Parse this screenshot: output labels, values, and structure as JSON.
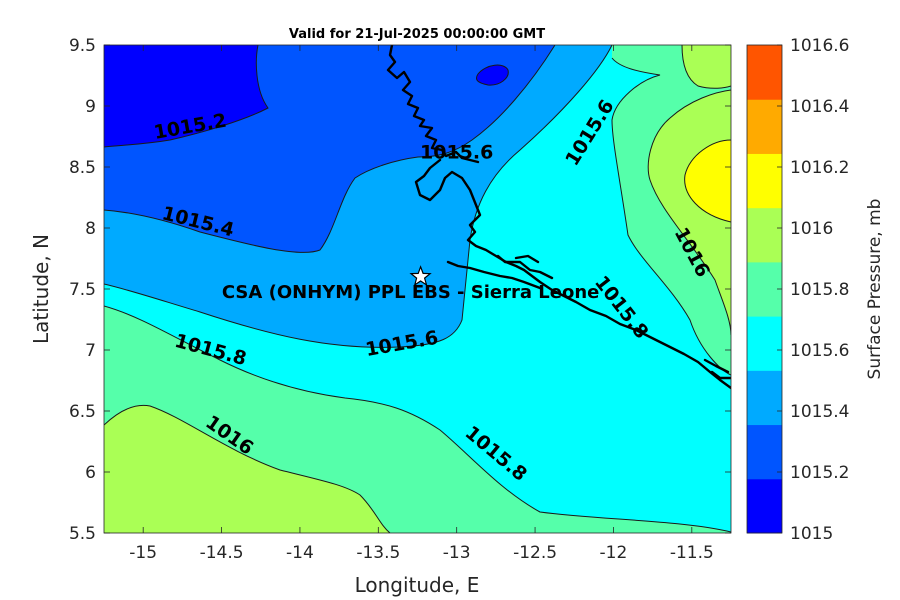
{
  "title": "Valid for 21-Jul-2025 00:00:00 GMT",
  "site_label": "CSA (ONHYM) PPL EBS  - Sierra Leone",
  "site_marker": {
    "lon": -13.23,
    "lat": 7.6,
    "icon": "star-icon"
  },
  "chart_data": {
    "type": "contour",
    "xlabel": "Longitude, E",
    "ylabel": "Latitude, N",
    "xlim": [
      -15.25,
      -11.25
    ],
    "ylim": [
      5.5,
      9.5
    ],
    "x_ticks": [
      -15,
      -14.5,
      -14,
      -13.5,
      -13,
      -12.5,
      -12,
      -11.5
    ],
    "y_ticks": [
      5.5,
      6,
      6.5,
      7,
      7.5,
      8,
      8.5,
      9,
      9.5
    ],
    "x_tick_labels": [
      "-15",
      "-14.5",
      "-14",
      "-13.5",
      "-13",
      "-12.5",
      "-12",
      "-11.5"
    ],
    "y_tick_labels": [
      "5.5",
      "6",
      "6.5",
      "7",
      "7.5",
      "8",
      "8.5",
      "9",
      "9.5"
    ],
    "contour_levels": [
      1015,
      1015.2,
      1015.4,
      1015.6,
      1015.8,
      1016,
      1016.2,
      1016.4,
      1016.6
    ],
    "contour_labels": [
      {
        "text": "1015.2",
        "lon": -14.7,
        "lat": 8.83,
        "angle": -10
      },
      {
        "text": "1015.4",
        "lon": -14.65,
        "lat": 8.05,
        "angle": 14
      },
      {
        "text": "1015.6",
        "lon": -13.0,
        "lat": 8.62,
        "angle": 0
      },
      {
        "text": "1015.6",
        "lon": -12.15,
        "lat": 8.78,
        "angle": -58
      },
      {
        "text": "1015.6",
        "lon": -13.35,
        "lat": 7.05,
        "angle": -10
      },
      {
        "text": "1015.8",
        "lon": -14.57,
        "lat": 7.0,
        "angle": 15
      },
      {
        "text": "1015.8",
        "lon": -11.95,
        "lat": 7.35,
        "angle": 52
      },
      {
        "text": "1015.8",
        "lon": -12.75,
        "lat": 6.15,
        "angle": 40
      },
      {
        "text": "1016",
        "lon": -14.45,
        "lat": 6.3,
        "angle": 35
      },
      {
        "text": "1016",
        "lon": -11.5,
        "lat": 7.8,
        "angle": 62
      }
    ],
    "colorbar": {
      "label": "Surface Pressure, mb",
      "tick_labels": [
        "1015",
        "1015.2",
        "1015.4",
        "1015.6",
        "1015.8",
        "1016",
        "1016.2",
        "1016.4",
        "1016.6"
      ],
      "colors": [
        "#0000ff",
        "#0055ff",
        "#00aaff",
        "#00ffff",
        "#55ffaa",
        "#aaff55",
        "#ffff00",
        "#ffaa00",
        "#ff5500"
      ]
    }
  }
}
